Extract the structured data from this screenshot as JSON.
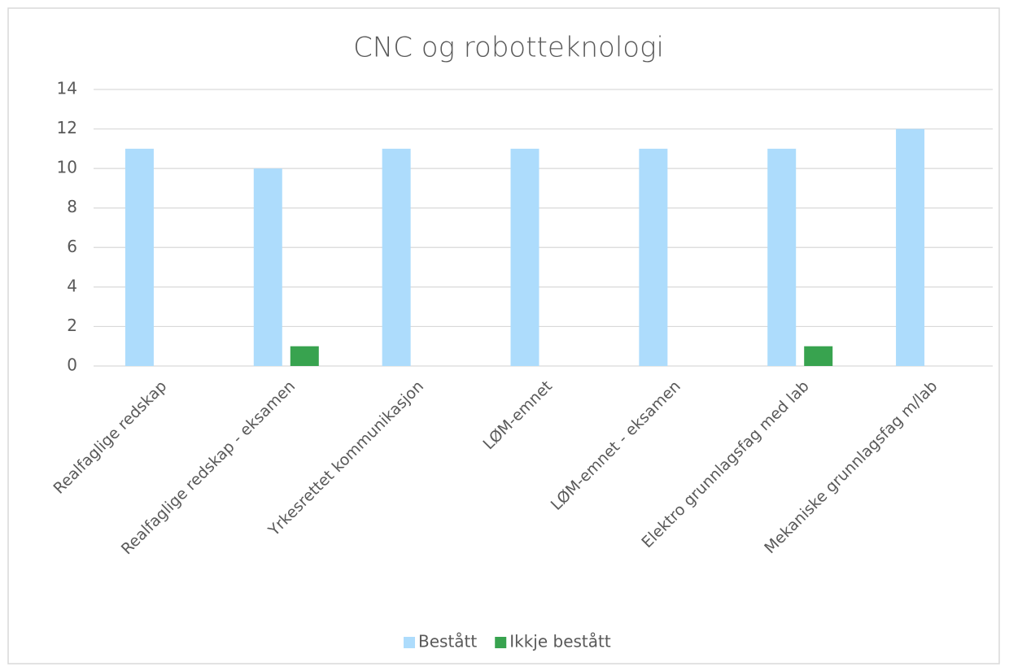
{
  "chart_data": {
    "type": "bar",
    "title": "CNC og robotteknologi",
    "categories": [
      "Realfaglige redskap",
      "Realfaglige redskap - eksamen",
      "Yrkesrettet kommunikasjon",
      "LØM-emnet",
      "LØM-emnet - eksamen",
      "Elektro grunnlagsfag med lab",
      "Mekaniske grunnlagsfag m/lab"
    ],
    "series": [
      {
        "name": "Bestått",
        "color": "#addcfc",
        "values": [
          11,
          10,
          11,
          11,
          11,
          11,
          12
        ]
      },
      {
        "name": "Ikkje bestått",
        "color": "#38a34f",
        "values": [
          0,
          1,
          0,
          0,
          0,
          1,
          0
        ]
      }
    ],
    "ylim": [
      0,
      14
    ],
    "yticks": [
      0,
      2,
      4,
      6,
      8,
      10,
      12,
      14
    ],
    "grid": true,
    "legend": "bottom"
  }
}
